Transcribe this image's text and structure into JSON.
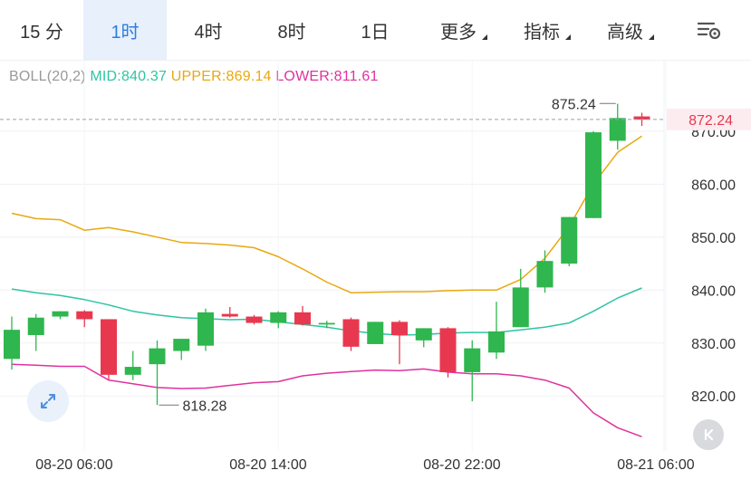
{
  "tabs": [
    {
      "label": "15 分",
      "active": false
    },
    {
      "label": "1时",
      "active": true
    },
    {
      "label": "4时",
      "active": false
    },
    {
      "label": "8时",
      "active": false
    },
    {
      "label": "1日",
      "active": false
    },
    {
      "label": "更多",
      "active": false,
      "menu": true
    },
    {
      "label": "指标",
      "active": false,
      "menu": true
    },
    {
      "label": "高级",
      "active": false,
      "menu": true
    }
  ],
  "indicator": {
    "name": "BOLL(20,2)",
    "mid_label": "MID:840.37",
    "upper_label": "UPPER:869.14",
    "lower_label": "LOWER:811.61",
    "colors": {
      "mid": "#2ec4a3",
      "upper": "#e9a80f",
      "lower": "#e0319e",
      "name": "#999999"
    }
  },
  "chart_data": {
    "type": "candlestick",
    "y_axis_ticks": [
      820,
      830,
      840,
      850,
      860,
      870
    ],
    "y_tick_labels": [
      "820.00",
      "830.00",
      "840.00",
      "850.00",
      "860.00",
      "870.00"
    ],
    "ylim": [
      812,
      877
    ],
    "current_price": "872.24",
    "current_price_value": 872.24,
    "high_marker": {
      "label": "875.24",
      "value": 875.24
    },
    "low_marker": {
      "label": "818.28",
      "value": 818.28
    },
    "x_labels": [
      "08-20 06:00",
      "08-20 14:00",
      "08-20 22:00",
      "08-21 06:00"
    ],
    "x_label_candle_index": [
      3,
      11,
      19,
      27
    ],
    "candles": [
      {
        "o": 827.0,
        "h": 835.0,
        "l": 825.0,
        "c": 832.5
      },
      {
        "o": 831.5,
        "h": 835.5,
        "l": 828.5,
        "c": 834.8
      },
      {
        "o": 835.0,
        "h": 836.0,
        "l": 834.5,
        "c": 836.0
      },
      {
        "o": 836.0,
        "h": 836.2,
        "l": 833.0,
        "c": 834.5
      },
      {
        "o": 834.5,
        "h": 834.5,
        "l": 823.0,
        "c": 824.0
      },
      {
        "o": 824.0,
        "h": 828.5,
        "l": 823.0,
        "c": 825.5
      },
      {
        "o": 826.0,
        "h": 830.5,
        "l": 818.3,
        "c": 829.0
      },
      {
        "o": 828.5,
        "h": 830.8,
        "l": 826.8,
        "c": 830.8
      },
      {
        "o": 829.5,
        "h": 836.5,
        "l": 828.5,
        "c": 835.8
      },
      {
        "o": 835.5,
        "h": 836.8,
        "l": 834.8,
        "c": 835.0
      },
      {
        "o": 835.0,
        "h": 835.3,
        "l": 833.5,
        "c": 833.8
      },
      {
        "o": 833.8,
        "h": 836.0,
        "l": 832.8,
        "c": 835.8
      },
      {
        "o": 835.8,
        "h": 837.0,
        "l": 833.3,
        "c": 833.5
      },
      {
        "o": 833.5,
        "h": 834.2,
        "l": 832.8,
        "c": 833.8
      },
      {
        "o": 834.5,
        "h": 834.8,
        "l": 828.5,
        "c": 829.3
      },
      {
        "o": 829.8,
        "h": 834.0,
        "l": 829.8,
        "c": 834.0
      },
      {
        "o": 834.0,
        "h": 834.3,
        "l": 826.0,
        "c": 831.5
      },
      {
        "o": 830.5,
        "h": 832.8,
        "l": 829.2,
        "c": 832.8
      },
      {
        "o": 832.8,
        "h": 833.0,
        "l": 823.5,
        "c": 824.5
      },
      {
        "o": 824.5,
        "h": 830.5,
        "l": 819.0,
        "c": 829.0
      },
      {
        "o": 828.2,
        "h": 837.8,
        "l": 827.0,
        "c": 832.2
      },
      {
        "o": 833.0,
        "h": 844.0,
        "l": 833.0,
        "c": 840.5
      },
      {
        "o": 840.5,
        "h": 847.5,
        "l": 839.5,
        "c": 845.5
      },
      {
        "o": 845.0,
        "h": 853.8,
        "l": 844.5,
        "c": 853.8
      },
      {
        "o": 853.6,
        "h": 870.0,
        "l": 853.6,
        "c": 869.8
      },
      {
        "o": 868.2,
        "h": 875.2,
        "l": 866.5,
        "c": 872.5
      },
      {
        "o": 872.8,
        "h": 873.5,
        "l": 871.0,
        "c": 872.2
      }
    ],
    "series": [
      {
        "key": "upper",
        "values": [
          854.5,
          853.5,
          853.3,
          851.3,
          851.8,
          851.0,
          850.0,
          849.0,
          848.8,
          848.5,
          848.0,
          846.3,
          844.0,
          841.5,
          839.5,
          839.6,
          839.7,
          839.7,
          839.9,
          840.0,
          840.0,
          842.0,
          846.0,
          852.0,
          860.0,
          866.0,
          869.1
        ]
      },
      {
        "key": "mid",
        "values": [
          840.2,
          839.5,
          839.0,
          838.2,
          837.2,
          836.0,
          835.3,
          834.8,
          834.6,
          834.4,
          834.5,
          834.0,
          833.5,
          833.0,
          832.3,
          831.8,
          831.5,
          831.6,
          831.9,
          832.0,
          832.0,
          832.5,
          833.0,
          833.8,
          836.0,
          838.5,
          840.4
        ]
      },
      {
        "key": "lower",
        "values": [
          826.0,
          825.8,
          825.6,
          825.6,
          823.0,
          822.3,
          821.6,
          821.4,
          821.5,
          822.0,
          822.5,
          822.7,
          823.8,
          824.3,
          824.6,
          824.9,
          824.8,
          825.1,
          824.5,
          824.2,
          824.2,
          823.8,
          823.0,
          821.5,
          816.8,
          814.0,
          812.3
        ]
      }
    ]
  }
}
